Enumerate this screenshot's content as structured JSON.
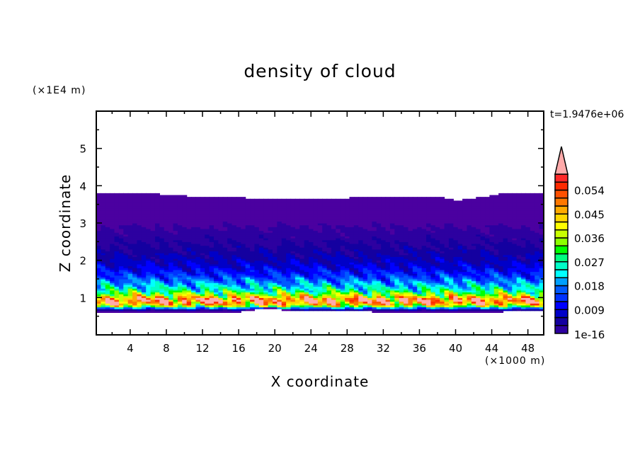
{
  "chart_data": {
    "type": "heatmap",
    "subtype": "filled-contour",
    "title": "density of cloud",
    "xlabel": "X coordinate",
    "ylabel": "Z coordinate",
    "x_unit": "(×1000 m)",
    "y_unit": "(×1E4 m)",
    "annotation": "t=1.9476e+06",
    "xlim": [
      0.25,
      49.75
    ],
    "ylim": [
      0,
      6
    ],
    "x_ticks": [
      "4",
      "8",
      "12",
      "16",
      "20",
      "24",
      "28",
      "32",
      "36",
      "40",
      "44",
      "48"
    ],
    "y_ticks": [
      "1",
      "2",
      "3",
      "4",
      "5"
    ],
    "colorbar": {
      "levels_min": 1e-16,
      "level_step": 0.003,
      "levels_max": 0.06,
      "extend": "max",
      "tick_labels": [
        "1e-16",
        "0.009",
        "0.018",
        "0.027",
        "0.036",
        "0.045",
        "0.054"
      ],
      "colors": [
        "#4b00a0",
        "#2d00a0",
        "#1400a0",
        "#0000c8",
        "#0000ff",
        "#0032ff",
        "#005aff",
        "#00a0ff",
        "#00ffff",
        "#00ffc8",
        "#00ff80",
        "#00ff00",
        "#8cff00",
        "#c8ff00",
        "#ffff00",
        "#ffd700",
        "#ffaa00",
        "#ff7800",
        "#ff5000",
        "#ff2a00",
        "#ff2828"
      ],
      "over_color": "#ffaaaa"
    },
    "vertical_profile_estimate": {
      "z": [
        0.62,
        0.66,
        0.72,
        0.8,
        0.9,
        0.97,
        1.05,
        1.2,
        1.4,
        1.6,
        1.8,
        2.0,
        2.3,
        2.6,
        2.9,
        3.2,
        3.7
      ],
      "density": [
        0.0005,
        0.004,
        0.02,
        0.045,
        0.057,
        0.054,
        0.042,
        0.029,
        0.022,
        0.016,
        0.012,
        0.0095,
        0.007,
        0.005,
        0.003,
        0.0012,
        0.0004
      ]
    },
    "cloud_top_estimate": {
      "x": [
        0,
        6,
        8,
        12,
        16,
        20,
        30,
        38,
        40,
        42,
        46,
        50
      ],
      "z": [
        3.82,
        3.8,
        3.75,
        3.7,
        3.68,
        3.65,
        3.68,
        3.72,
        3.6,
        3.66,
        3.82,
        3.82
      ]
    },
    "cloud_base_estimate": {
      "x": [
        0,
        16,
        18,
        20,
        22,
        40,
        50
      ],
      "z": [
        0.62,
        0.62,
        0.68,
        0.7,
        0.63,
        0.62,
        0.63
      ]
    }
  }
}
